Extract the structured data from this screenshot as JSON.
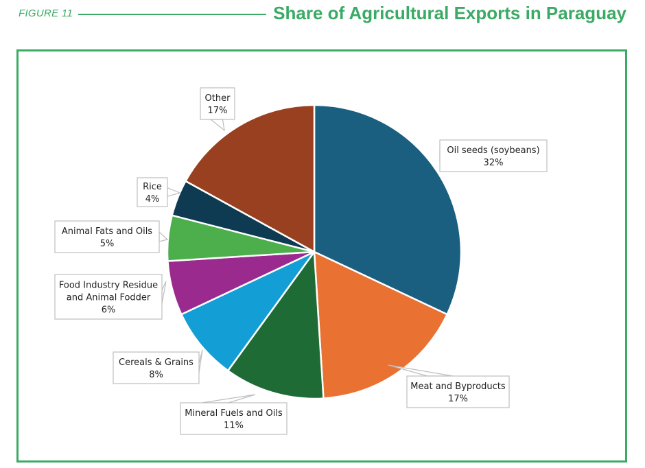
{
  "header": {
    "figure_label": "FIGURE 11",
    "title": "Share of Agricultural Exports in Paraguay",
    "accent_color": "#3aaa64"
  },
  "chart_data": {
    "type": "pie",
    "title": "Share of Agricultural Exports in Paraguay",
    "start_angle": "12 o'clock",
    "direction": "clockwise",
    "legend": "none (data callouts)",
    "slices": [
      {
        "label": "Oil seeds (soybeans)",
        "value": 32,
        "display": "32%",
        "color": "#1a5f80"
      },
      {
        "label": "Meat and Byproducts",
        "value": 17,
        "display": "17%",
        "color": "#e97232"
      },
      {
        "label": "Mineral Fuels and Oils",
        "value": 11,
        "display": "11%",
        "color": "#1e6b36"
      },
      {
        "label": "Cereals & Grains",
        "value": 8,
        "display": "8%",
        "color": "#149ed6"
      },
      {
        "label": "Food Industry Residue and Animal Fodder",
        "value": 6,
        "display": "6%",
        "color": "#9b2a8f"
      },
      {
        "label": "Animal Fats and Oils",
        "value": 5,
        "display": "5%",
        "color": "#4caf4c"
      },
      {
        "label": "Rice",
        "value": 4,
        "display": "4%",
        "color": "#0e3a52"
      },
      {
        "label": "Other",
        "value": 17,
        "display": "17%",
        "color": "#984020"
      }
    ],
    "callouts": [
      {
        "lines": [
          "Oil seeds (soybeans)",
          "32%"
        ]
      },
      {
        "lines": [
          "Meat and Byproducts",
          "17%"
        ]
      },
      {
        "lines": [
          "Mineral Fuels and Oils",
          "11%"
        ]
      },
      {
        "lines": [
          "Cereals & Grains",
          "8%"
        ]
      },
      {
        "lines": [
          "Food Industry Residue",
          "and Animal Fodder",
          "6%"
        ]
      },
      {
        "lines": [
          "Animal Fats and Oils",
          "5%"
        ]
      },
      {
        "lines": [
          "Rice",
          "4%"
        ]
      },
      {
        "lines": [
          "Other",
          "17%"
        ]
      }
    ]
  }
}
